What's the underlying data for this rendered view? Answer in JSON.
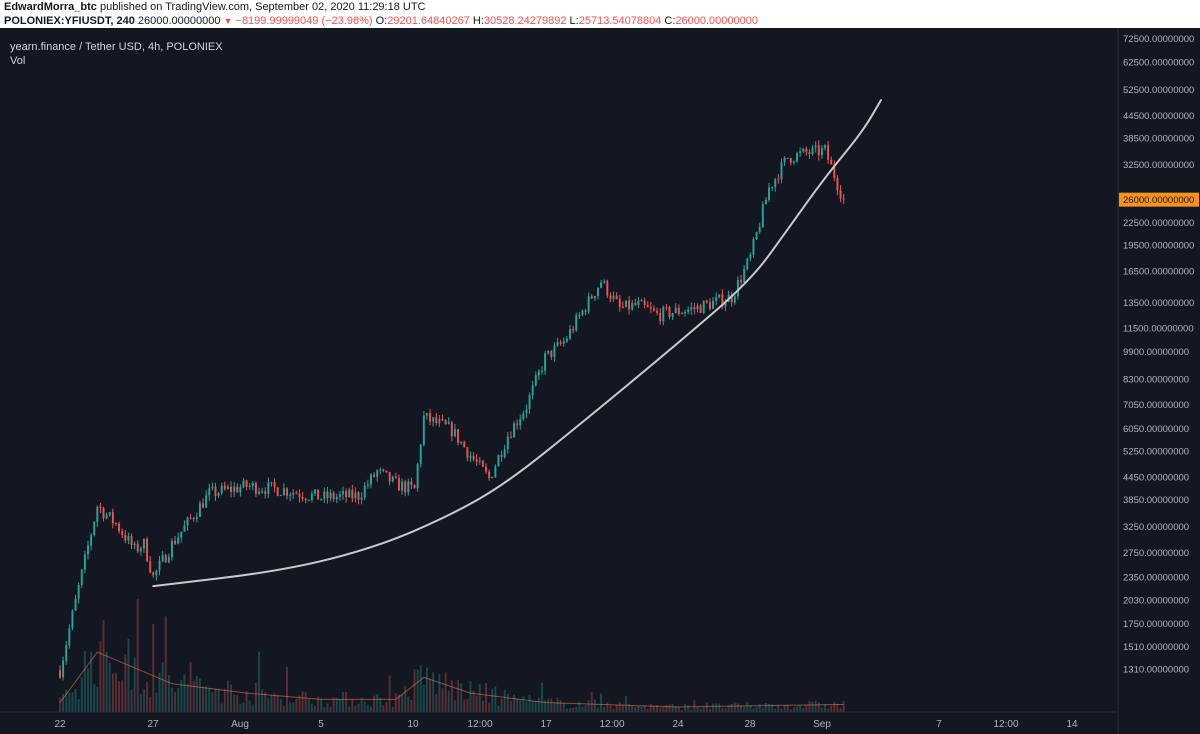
{
  "header": {
    "publisher": "EdwardMorra_btc",
    "published_text": "published on TradingView.com, September 02, 2020 11:29:18 UTC",
    "symbol": "POLONIEX:YFIUSDT, 240",
    "last": "26000.00000000",
    "change": "−8199.99999049 (−23.98%)",
    "o_label": "O:",
    "open": "29201.64840267",
    "h_label": "H:",
    "high": "30528.24279892",
    "l_label": "L:",
    "low": "25713.54078804",
    "c_label": "C:",
    "close": "26000.00000000"
  },
  "legend": {
    "title": "yearn.finance / Tether USD, 4h, POLONIEX",
    "study": "Vol"
  },
  "colors": {
    "background": "#131722",
    "up": "#26a69a",
    "down": "#ef5350",
    "curve": "#c8cad0",
    "last_price_label": "#f7931a"
  },
  "chart_data": {
    "type": "candlestick",
    "scale": "log",
    "y_ticks": [
      "72500.00000000",
      "62500.00000000",
      "52500.00000000",
      "44500.00000000",
      "38500.00000000",
      "32500.00000000",
      "26000.00000000",
      "22500.00000000",
      "19500.00000000",
      "16500.00000000",
      "13500.00000000",
      "11500.00000000",
      "9900.00000000",
      "8300.00000000",
      "7050.00000000",
      "6050.00000000",
      "5250.00000000",
      "4450.00000000",
      "3850.00000000",
      "3250.00000000",
      "2750.00000000",
      "2350.00000000",
      "2030.00000000",
      "1750.00000000",
      "1510.00000000",
      "1310.00000000"
    ],
    "y_tick_values": [
      72500,
      62500,
      52500,
      44500,
      38500,
      32500,
      26000,
      22500,
      19500,
      16500,
      13500,
      11500,
      9900,
      8300,
      7050,
      6050,
      5250,
      4450,
      3850,
      3250,
      2750,
      2350,
      2030,
      1750,
      1510,
      1310
    ],
    "last_price": 26000,
    "last_price_label": "26000.00000000",
    "x_ticks": [
      "22",
      "27",
      "Aug",
      "5",
      "10",
      "12:00",
      "17",
      "12:00",
      "24",
      "28",
      "Sep",
      "7",
      "12:00",
      "14"
    ],
    "anchors": [
      {
        "date": "2020-07-22",
        "price": 1300
      },
      {
        "date": "2020-07-23",
        "price": 2200
      },
      {
        "date": "2020-07-24",
        "price": 3700
      },
      {
        "date": "2020-07-25",
        "price": 3300
      },
      {
        "date": "2020-07-26",
        "price": 2800
      },
      {
        "date": "2020-07-26 12:00",
        "price": 2900
      },
      {
        "date": "2020-07-27",
        "price": 2350
      },
      {
        "date": "2020-07-28",
        "price": 2900
      },
      {
        "date": "2020-07-30",
        "price": 4000
      },
      {
        "date": "2020-08-01",
        "price": 4200
      },
      {
        "date": "2020-08-03",
        "price": 4100
      },
      {
        "date": "2020-08-05",
        "price": 3900
      },
      {
        "date": "2020-08-07",
        "price": 3950
      },
      {
        "date": "2020-08-08",
        "price": 4600
      },
      {
        "date": "2020-08-09",
        "price": 4250
      },
      {
        "date": "2020-08-10",
        "price": 4100
      },
      {
        "date": "2020-08-10 12:00",
        "price": 6500
      },
      {
        "date": "2020-08-12",
        "price": 6000
      },
      {
        "date": "2020-08-13",
        "price": 5100
      },
      {
        "date": "2020-08-14",
        "price": 4400
      },
      {
        "date": "2020-08-15",
        "price": 5800
      },
      {
        "date": "2020-08-16",
        "price": 7000
      },
      {
        "date": "2020-08-17",
        "price": 9500
      },
      {
        "date": "2020-08-18",
        "price": 10500
      },
      {
        "date": "2020-08-20",
        "price": 15500
      },
      {
        "date": "2020-08-21",
        "price": 13000
      },
      {
        "date": "2020-08-22",
        "price": 13300
      },
      {
        "date": "2020-08-23",
        "price": 12500
      },
      {
        "date": "2020-08-25",
        "price": 13000
      },
      {
        "date": "2020-08-27",
        "price": 14000
      },
      {
        "date": "2020-08-28",
        "price": 18000
      },
      {
        "date": "2020-08-29",
        "price": 28000
      },
      {
        "date": "2020-08-30",
        "price": 34000
      },
      {
        "date": "2020-08-31",
        "price": 35000
      },
      {
        "date": "2020-09-01",
        "price": 35500
      },
      {
        "date": "2020-09-02",
        "price": 26000
      }
    ],
    "volume_profile": [
      {
        "date": "2020-07-22",
        "volume": 0.15
      },
      {
        "date": "2020-07-24",
        "volume": 0.95
      },
      {
        "date": "2020-07-26",
        "volume": 0.7
      },
      {
        "date": "2020-07-28",
        "volume": 0.45
      },
      {
        "date": "2020-08-01",
        "volume": 0.3
      },
      {
        "date": "2020-08-05",
        "volume": 0.2
      },
      {
        "date": "2020-08-09",
        "volume": 0.2
      },
      {
        "date": "2020-08-10 12:00",
        "volume": 0.55
      },
      {
        "date": "2020-08-13",
        "volume": 0.3
      },
      {
        "date": "2020-08-17",
        "volume": 0.15
      },
      {
        "date": "2020-08-24",
        "volume": 0.08
      },
      {
        "date": "2020-09-02",
        "volume": 0.12
      }
    ],
    "curve": [
      {
        "date": "2020-07-27",
        "price": 2220
      },
      {
        "date": "2020-08-03",
        "price": 2450
      },
      {
        "date": "2020-08-08",
        "price": 2850
      },
      {
        "date": "2020-08-12",
        "price": 3500
      },
      {
        "date": "2020-08-15",
        "price": 4300
      },
      {
        "date": "2020-08-19",
        "price": 6300
      },
      {
        "date": "2020-08-24",
        "price": 10300
      },
      {
        "date": "2020-08-28",
        "price": 15500
      },
      {
        "date": "2020-08-30",
        "price": 21500
      },
      {
        "date": "2020-09-01",
        "price": 30000
      },
      {
        "date": "2020-09-03",
        "price": 40000
      },
      {
        "date": "2020-09-04",
        "price": 49000
      }
    ]
  }
}
